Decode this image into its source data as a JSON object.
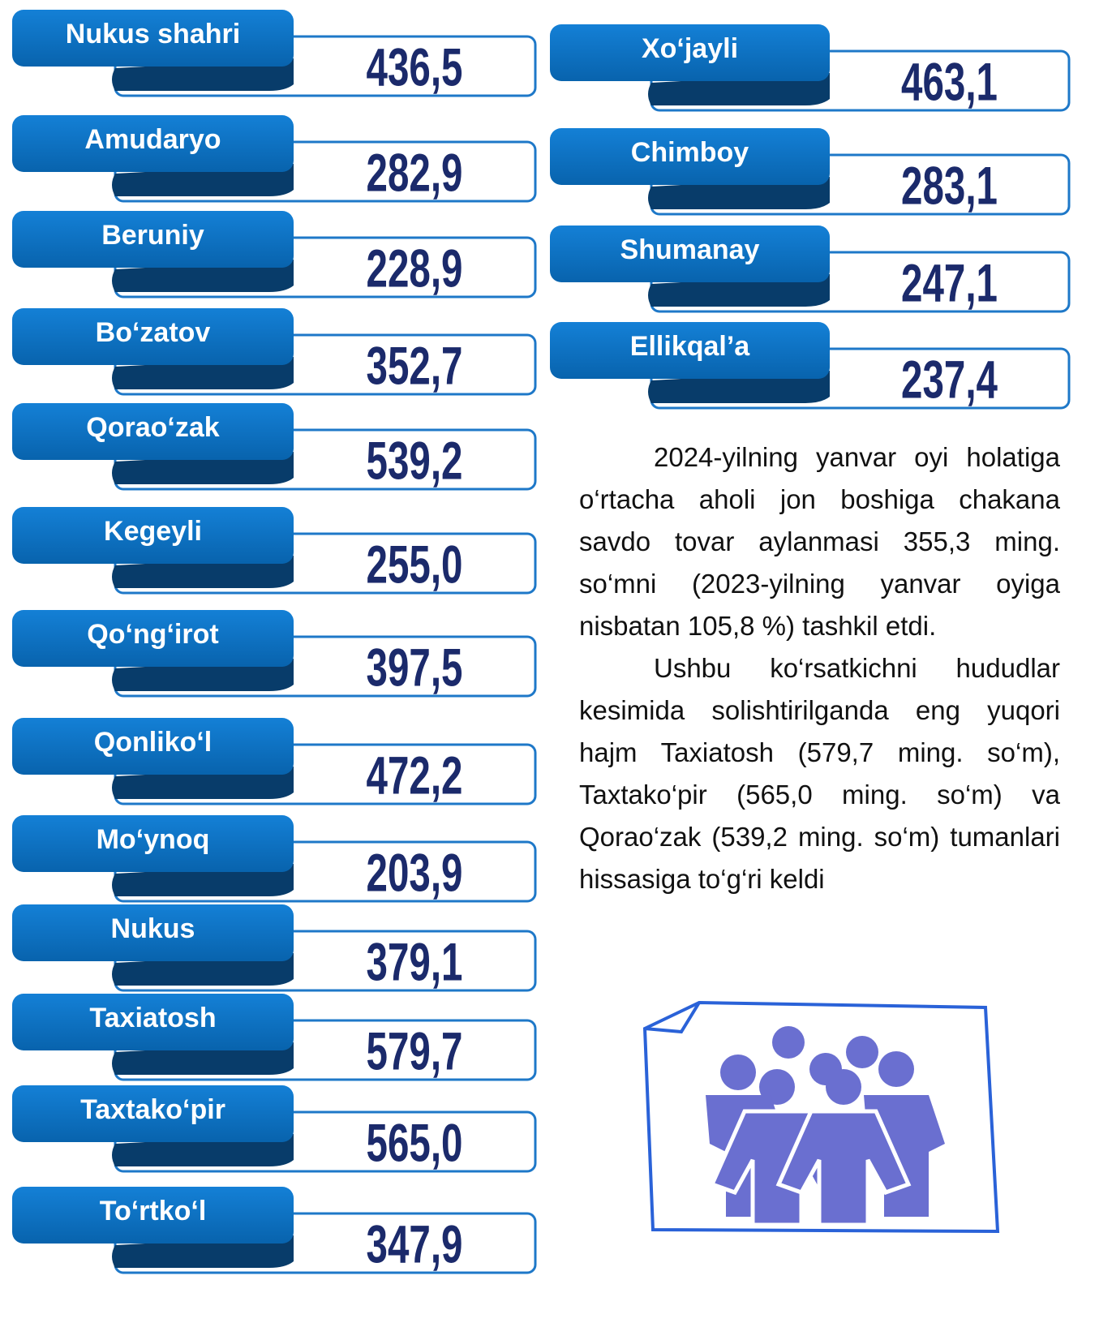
{
  "left": [
    {
      "name": "Nukus shahri",
      "value": "436,5"
    },
    {
      "name": "Amudaryo",
      "value": "282,9"
    },
    {
      "name": "Beruniy",
      "value": "228,9"
    },
    {
      "name": "Bo‘zatov",
      "value": "352,7"
    },
    {
      "name": "Qorao‘zak",
      "value": "539,2"
    },
    {
      "name": "Kegeyli",
      "value": "255,0"
    },
    {
      "name": "Qo‘ng‘irot",
      "value": "397,5"
    },
    {
      "name": "Qonliko‘l",
      "value": "472,2"
    },
    {
      "name": "Mo‘ynoq",
      "value": "203,9"
    },
    {
      "name": "Nukus",
      "value": "379,1"
    },
    {
      "name": "Taxiatosh",
      "value": "579,7"
    },
    {
      "name": "Taxtako‘pir",
      "value": "565,0"
    },
    {
      "name": "To‘rtko‘l",
      "value": "347,9"
    }
  ],
  "right": [
    {
      "name": "Xo‘jayli",
      "value": "463,1"
    },
    {
      "name": "Chimboy",
      "value": "283,1"
    },
    {
      "name": "Shumanay",
      "value": "247,1"
    },
    {
      "name": "Ellikqal’a",
      "value": "237,4"
    }
  ],
  "text": [
    "2024-yilning yanvar oyi holatiga o‘rtacha aholi jon boshiga chakana savdo tovar aylanmasi 355,3 ming. so‘mni (2023-yilning yanvar oyiga nisbatan 105,8 %) tashkil etdi.",
    "Ushbu ko‘rsatkichni hududlar kesimida solishtirilganda eng yuqori hajm Taxiatosh (579,7 ming. so‘m), Taxtako‘pir (565,0 ming. so‘m) va Qorao‘zak (539,2 ming. so‘m) tumanlari hissasiga to‘g‘ri keldi"
  ]
}
